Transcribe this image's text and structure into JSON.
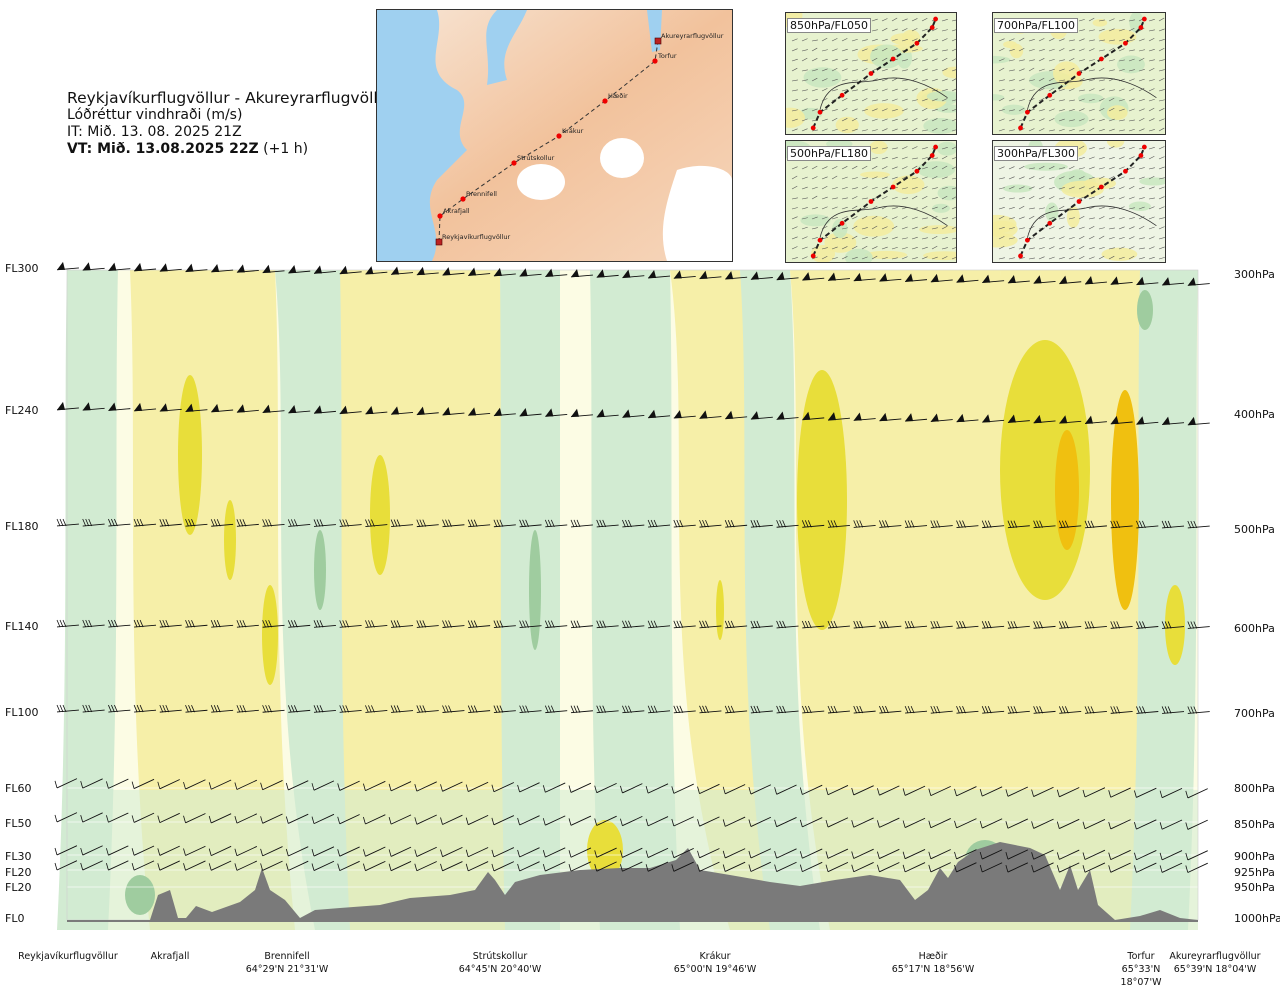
{
  "header": {
    "route": "Reykjavíkurflugvöllur - Akureyrarflugvöllur",
    "parameter": "Lóðréttur vindhraði (m/s)",
    "issue_time": "IT: Mið. 13. 08. 2025 21Z",
    "valid_prefix": "VT: Mið. 13.08.2025 22Z",
    "valid_suffix": "(+1 h)"
  },
  "route_map": {
    "places": [
      "Akureyrarflugvöllur",
      "Torfur",
      "Hæðir",
      "Krákur",
      "Strútskollur",
      "Brennifell",
      "Akrafjall",
      "Reykjavíkurflugvöllur"
    ]
  },
  "inset_maps": [
    "850hPa/FL050",
    "700hPa/FL100",
    "500hPa/FL180",
    "300hPa/FL300"
  ],
  "chart_data": {
    "type": "heatmap",
    "title": "Lóðréttur vindhraði (m/s)",
    "left_axis": [
      "FL300",
      "FL240",
      "FL180",
      "FL140",
      "FL100",
      "FL60",
      "FL50",
      "FL30",
      "FL20",
      "FL20",
      "FL0"
    ],
    "right_axis": [
      "300hPa",
      "400hPa",
      "500hPa",
      "600hPa",
      "700hPa",
      "800hPa",
      "850hPa",
      "900hPa",
      "925hPa",
      "950hPa",
      "1000hPa"
    ],
    "waypoints": [
      {
        "name": "Reykjavíkurflugvöllur",
        "coord": ""
      },
      {
        "name": "Akrafjall",
        "coord": ""
      },
      {
        "name": "Brennifell",
        "coord": "64°29'N 21°31'W"
      },
      {
        "name": "Strútskollur",
        "coord": "64°45'N 20°40'W"
      },
      {
        "name": "Krákur",
        "coord": "65°00'N 19°46'W"
      },
      {
        "name": "Hæðir",
        "coord": "65°17'N 18°56'W"
      },
      {
        "name": "Torfur",
        "coord": "65°33'N 18°07'W"
      },
      {
        "name": "Akureyrarflugvöllur",
        "coord": "65°39'N 18°04'W"
      }
    ],
    "colors": {
      "weak_down": "#d2ebd2",
      "mod_down": "#9fcc9f",
      "neutral": "#fcfce4",
      "weak_up": "#f6efa8",
      "mod_up": "#e8de3a",
      "strong_up": "#f0c010",
      "terrain": "#7a7a7a"
    }
  }
}
